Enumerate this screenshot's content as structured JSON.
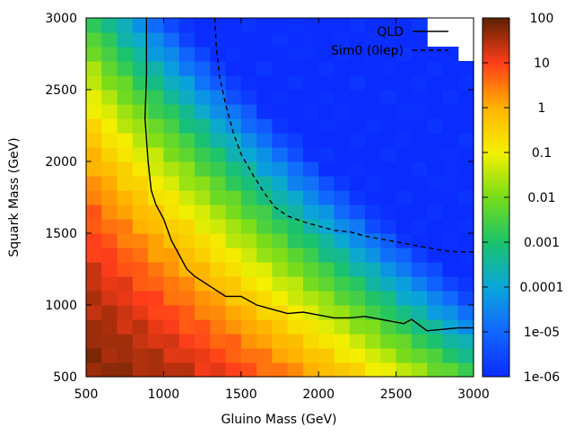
{
  "chart_data": {
    "type": "heatmap",
    "title": "",
    "xlabel": "Gluino Mass (GeV)",
    "ylabel": "Squark Mass (GeV)",
    "xlim": [
      500,
      3000
    ],
    "ylim": [
      500,
      3000
    ],
    "grid": false,
    "x_ticks": [
      500,
      1000,
      1500,
      2000,
      2500,
      3000
    ],
    "y_ticks": [
      500,
      1000,
      1500,
      2000,
      2500,
      3000
    ],
    "x_tick_labels": [
      "500",
      "1000",
      "1500",
      "2000",
      "2500",
      "3000"
    ],
    "y_tick_labels": [
      "500",
      "1000",
      "1500",
      "2000",
      "2500",
      "3000"
    ],
    "cell_size_gev": 100,
    "colorbar": {
      "scale": "log",
      "range": [
        1e-06,
        100
      ],
      "tick_values": [
        100,
        10,
        1,
        0.1,
        0.01,
        0.001,
        0.0001,
        1e-05,
        1e-06
      ],
      "tick_labels": [
        "100",
        "10",
        "1",
        "0.1",
        "0.01",
        "0.001",
        "0.0001",
        "1e-05",
        "1e-06"
      ],
      "stops": [
        {
          "value_log10": -6,
          "color": "#0b2cff"
        },
        {
          "value_log10": -5,
          "color": "#1166ff"
        },
        {
          "value_log10": -4,
          "color": "#0aa6d9"
        },
        {
          "value_log10": -3,
          "color": "#1bc36a"
        },
        {
          "value_log10": -2,
          "color": "#78dc1a"
        },
        {
          "value_log10": -1,
          "color": "#f4f000"
        },
        {
          "value_log10": 0,
          "color": "#ffb300"
        },
        {
          "value_log10": 1,
          "color": "#ff3d1a"
        },
        {
          "value_log10": 2,
          "color": "#5a2200"
        }
      ]
    },
    "legend": {
      "placement": "top-right",
      "entries": [
        {
          "label": "QLD",
          "style": "solid"
        },
        {
          "label": "Sim0 (0lep)",
          "style": "dashed"
        }
      ]
    },
    "series": [
      {
        "name": "QLD",
        "style": "solid",
        "points": [
          [
            890,
            3000
          ],
          [
            890,
            2600
          ],
          [
            880,
            2300
          ],
          [
            900,
            2000
          ],
          [
            920,
            1800
          ],
          [
            950,
            1700
          ],
          [
            1000,
            1600
          ],
          [
            1050,
            1450
          ],
          [
            1100,
            1350
          ],
          [
            1150,
            1250
          ],
          [
            1200,
            1200
          ],
          [
            1300,
            1130
          ],
          [
            1400,
            1060
          ],
          [
            1500,
            1060
          ],
          [
            1600,
            1000
          ],
          [
            1700,
            970
          ],
          [
            1800,
            940
          ],
          [
            1900,
            950
          ],
          [
            2000,
            930
          ],
          [
            2100,
            910
          ],
          [
            2200,
            910
          ],
          [
            2300,
            920
          ],
          [
            2400,
            900
          ],
          [
            2500,
            880
          ],
          [
            2550,
            870
          ],
          [
            2600,
            900
          ],
          [
            2650,
            860
          ],
          [
            2700,
            820
          ],
          [
            2800,
            830
          ],
          [
            2900,
            840
          ],
          [
            3000,
            840
          ]
        ]
      },
      {
        "name": "Sim0 (0lep)",
        "style": "dashed",
        "points": [
          [
            1330,
            3000
          ],
          [
            1340,
            2800
          ],
          [
            1360,
            2600
          ],
          [
            1400,
            2400
          ],
          [
            1450,
            2200
          ],
          [
            1500,
            2050
          ],
          [
            1580,
            1900
          ],
          [
            1650,
            1780
          ],
          [
            1720,
            1680
          ],
          [
            1800,
            1620
          ],
          [
            1900,
            1580
          ],
          [
            2000,
            1550
          ],
          [
            2100,
            1520
          ],
          [
            2200,
            1510
          ],
          [
            2300,
            1480
          ],
          [
            2400,
            1460
          ],
          [
            2500,
            1440
          ],
          [
            2600,
            1420
          ],
          [
            2700,
            1400
          ],
          [
            2800,
            1380
          ],
          [
            2900,
            1370
          ],
          [
            3000,
            1370
          ]
        ]
      }
    ],
    "blank_region_corner": "top-right",
    "blank_cells": [
      [
        2700,
        2900
      ],
      [
        2800,
        2900
      ],
      [
        2900,
        2900
      ],
      [
        2700,
        2800
      ],
      [
        2800,
        2800
      ],
      [
        2900,
        2800
      ],
      [
        2900,
        2700
      ]
    ],
    "field_model": {
      "description": "log10 value per 100 GeV cell",
      "min_log10": -6.0,
      "max_log10": 2.0,
      "origin_log10": 1.7,
      "mass_scale_gev": 2100,
      "exponent": 2.0,
      "curvature": 1.15
    }
  }
}
